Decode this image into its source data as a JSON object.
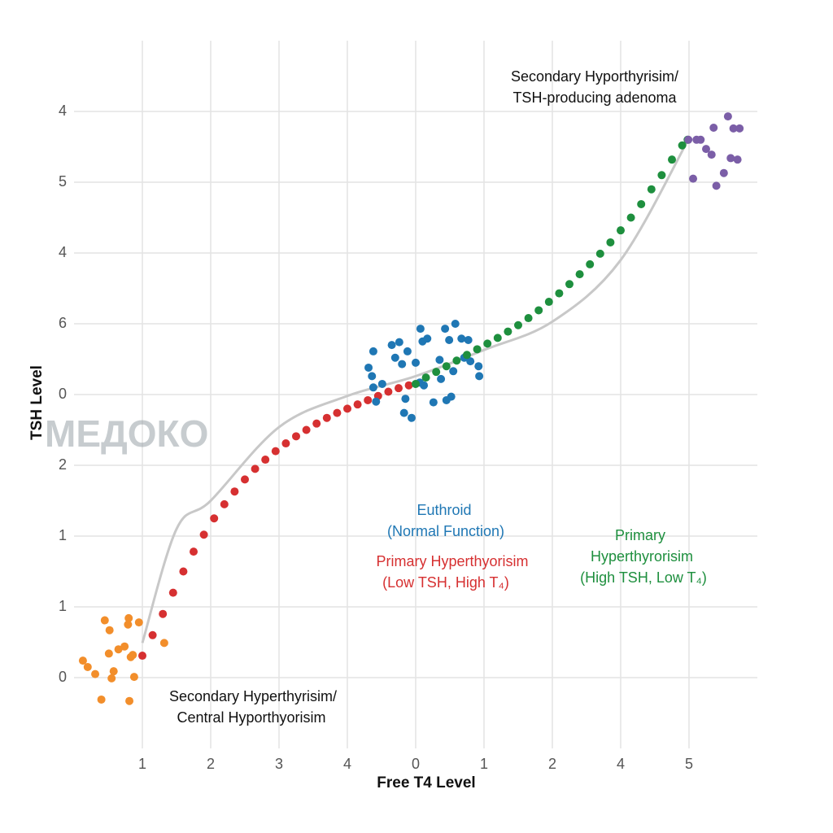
{
  "chart_data": {
    "type": "scatter",
    "xlabel": "Free T4 Level",
    "ylabel": "TSH Level",
    "xlim": [
      0,
      10
    ],
    "ylim": [
      0,
      10
    ],
    "xticks": [
      {
        "value": 1,
        "label": "1"
      },
      {
        "value": 2,
        "label": "2"
      },
      {
        "value": 3,
        "label": "3"
      },
      {
        "value": 4,
        "label": "4"
      },
      {
        "value": 5,
        "label": "0"
      },
      {
        "value": 6,
        "label": "1"
      },
      {
        "value": 7,
        "label": "2"
      },
      {
        "value": 8,
        "label": "4"
      },
      {
        "value": 9,
        "label": "5"
      }
    ],
    "yticks": [
      {
        "value": 1,
        "label": "0"
      },
      {
        "value": 2,
        "label": "1"
      },
      {
        "value": 3,
        "label": "1"
      },
      {
        "value": 4,
        "label": "2"
      },
      {
        "value": 5,
        "label": "0"
      },
      {
        "value": 6,
        "label": "6"
      },
      {
        "value": 7,
        "label": "4"
      },
      {
        "value": 8,
        "label": "5"
      },
      {
        "value": 9,
        "label": "4"
      }
    ],
    "grid": true,
    "curve": {
      "color": "#c8c8c8",
      "x": [
        1.0,
        1.5,
        2.0,
        3.0,
        4.0,
        5.0,
        6.0,
        7.0,
        8.0,
        9.0
      ],
      "values": [
        1.49,
        3.1,
        3.5,
        4.54,
        4.98,
        5.26,
        5.63,
        6.03,
        6.9,
        8.62
      ]
    },
    "series": [
      {
        "color": "#f28e2b",
        "x": [
          0.13,
          0.2,
          0.31,
          0.4,
          0.45,
          0.52,
          0.51,
          0.55,
          0.58,
          0.65,
          0.74,
          0.79,
          0.8,
          0.81,
          0.83,
          0.86,
          0.88,
          0.95,
          1.32
        ],
        "values": [
          1.24,
          1.15,
          1.05,
          0.69,
          1.81,
          1.67,
          1.34,
          0.99,
          1.09,
          1.4,
          1.44,
          1.75,
          1.84,
          0.67,
          1.29,
          1.32,
          1.01,
          1.78,
          1.49
        ]
      },
      {
        "color": "#d63031",
        "x": [
          1.0,
          1.15,
          1.3,
          1.45,
          1.6,
          1.75,
          1.9,
          2.05,
          2.2,
          2.35,
          2.5,
          2.65,
          2.8,
          2.95,
          3.1,
          3.25,
          3.4,
          3.55,
          3.7,
          3.85,
          4.0,
          4.15,
          4.3,
          4.45,
          4.6,
          4.75,
          4.9
        ],
        "values": [
          1.31,
          1.6,
          1.9,
          2.2,
          2.5,
          2.78,
          3.02,
          3.25,
          3.45,
          3.63,
          3.8,
          3.95,
          4.08,
          4.2,
          4.31,
          4.41,
          4.5,
          4.59,
          4.67,
          4.74,
          4.8,
          4.86,
          4.92,
          4.98,
          5.04,
          5.09,
          5.13
        ]
      },
      {
        "color": "#1f77b4",
        "x": [
          4.38,
          4.31,
          4.36,
          4.38,
          4.42,
          4.51,
          4.65,
          4.7,
          4.76,
          4.8,
          4.85,
          4.83,
          4.88,
          4.94,
          5.0,
          5.07,
          5.06,
          5.1,
          5.12,
          5.17,
          5.26,
          5.35,
          5.37,
          5.43,
          5.45,
          5.49,
          5.52,
          5.55,
          5.58,
          5.67,
          5.71,
          5.77,
          5.8,
          5.92,
          5.93
        ],
        "values": [
          5.61,
          5.38,
          5.26,
          5.1,
          4.9,
          5.15,
          5.7,
          5.52,
          5.74,
          5.43,
          4.94,
          4.74,
          5.61,
          4.67,
          5.45,
          5.93,
          5.17,
          5.75,
          5.13,
          5.79,
          4.89,
          5.49,
          5.22,
          5.93,
          4.92,
          5.77,
          4.97,
          5.33,
          6.0,
          5.79,
          5.52,
          5.77,
          5.47,
          5.4,
          5.26
        ]
      },
      {
        "color": "#1e8f3e",
        "x": [
          5.0,
          5.15,
          5.3,
          5.45,
          5.6,
          5.75,
          5.9,
          6.05,
          6.2,
          6.35,
          6.5,
          6.65,
          6.8,
          6.95,
          7.1,
          7.25,
          7.4,
          7.55,
          7.7,
          7.85,
          8.0,
          8.15,
          8.3,
          8.45,
          8.6,
          8.75,
          8.9,
          8.98
        ],
        "values": [
          5.15,
          5.24,
          5.32,
          5.4,
          5.48,
          5.56,
          5.64,
          5.72,
          5.8,
          5.89,
          5.98,
          6.08,
          6.19,
          6.31,
          6.43,
          6.56,
          6.7,
          6.84,
          6.99,
          7.15,
          7.32,
          7.5,
          7.69,
          7.9,
          8.1,
          8.32,
          8.52,
          8.6
        ]
      },
      {
        "color": "#7b5ea7",
        "x": [
          8.99,
          9.06,
          9.11,
          9.17,
          9.25,
          9.33,
          9.36,
          9.4,
          9.51,
          9.57,
          9.61,
          9.65,
          9.71,
          9.74
        ],
        "values": [
          8.6,
          8.05,
          8.6,
          8.6,
          8.47,
          8.39,
          8.77,
          7.95,
          8.13,
          8.93,
          8.34,
          8.76,
          8.32,
          8.76
        ]
      }
    ],
    "annotations": [
      {
        "color": "#111111",
        "lines": [
          "Secondary Hyporthyrisim/",
          "TSH-producing adenoma"
        ]
      },
      {
        "color": "#1f77b4",
        "lines": [
          "Euthroid",
          "(Normal Function)"
        ]
      },
      {
        "color": "#d63031",
        "lines": [
          "Primary Hyperthyorisim",
          "(Low TSH, High T₄)"
        ]
      },
      {
        "color": "#1e8f3e",
        "lines": [
          "Primary",
          "Hyperthyrorisim",
          "(High TSH, Low T₄)"
        ]
      },
      {
        "color": "#111111",
        "lines": [
          "Secondary Hyperthyrisim/",
          "Central Hyporthyorisim"
        ]
      }
    ],
    "watermark": "МЕДОКО"
  }
}
